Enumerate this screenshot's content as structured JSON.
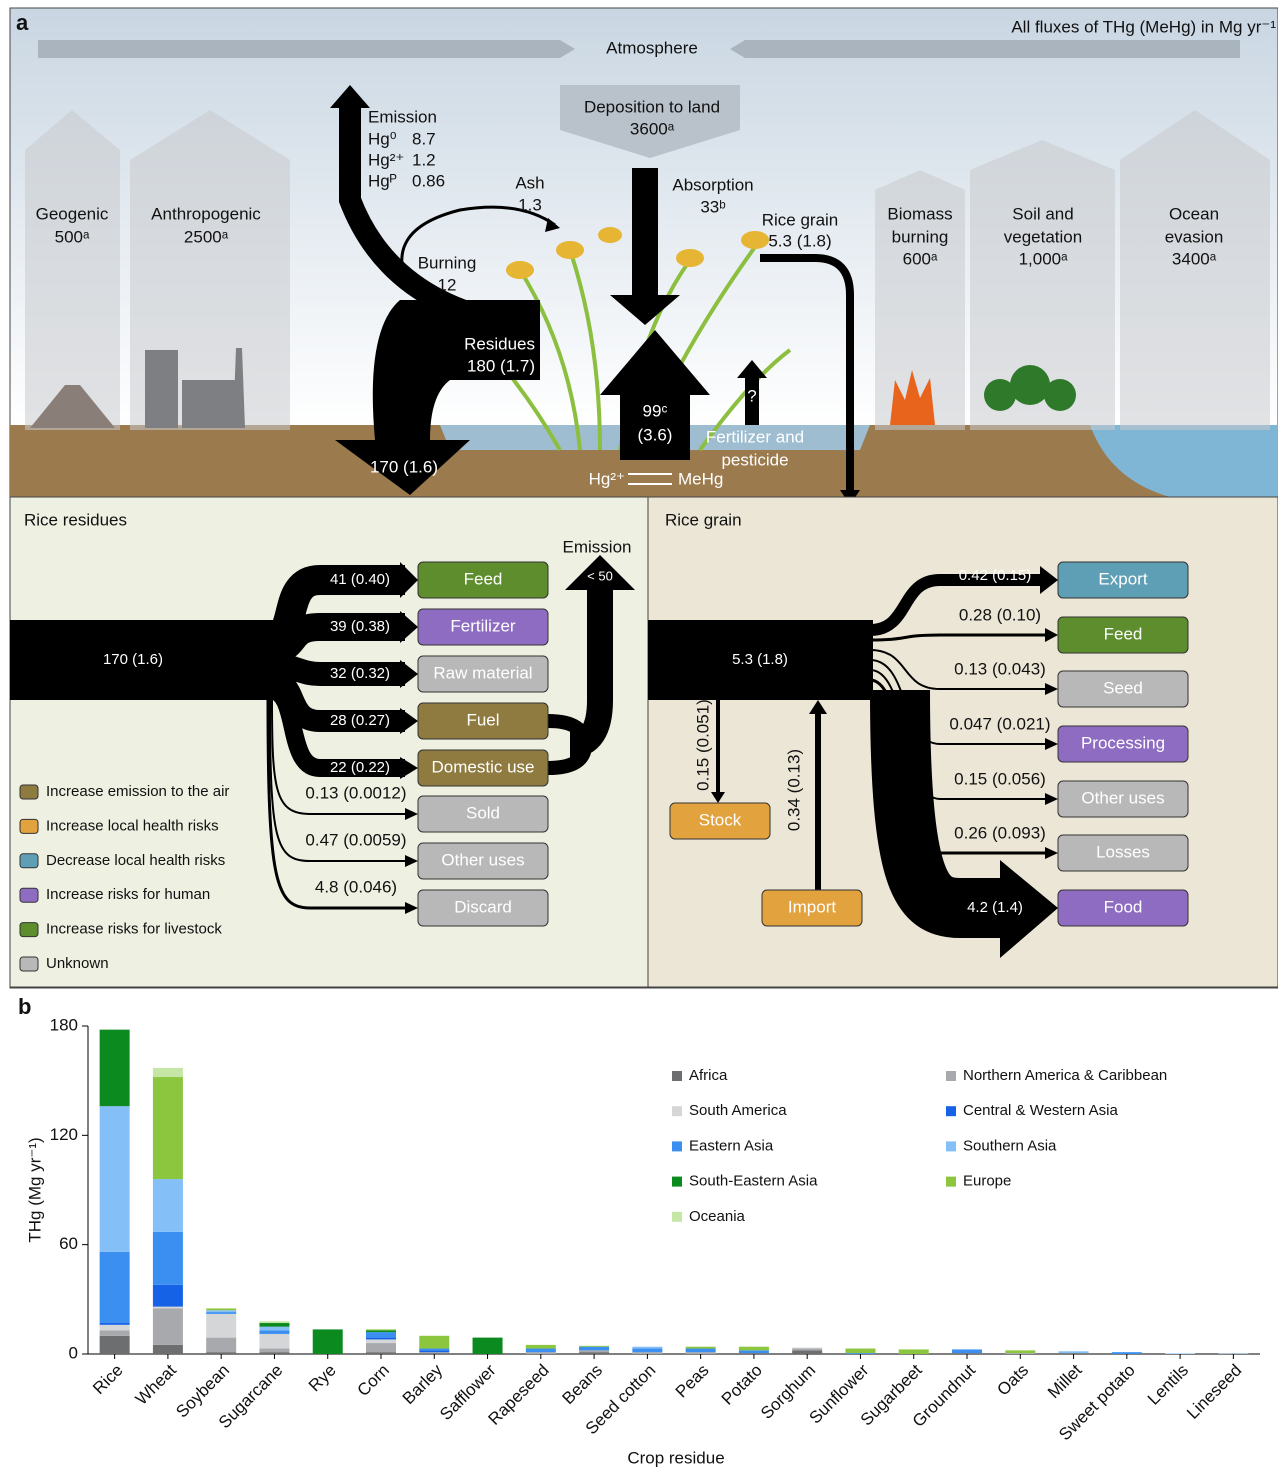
{
  "panel_a": {
    "label": "a",
    "units": "All fluxes of THg (MeHg) in Mg yr⁻¹",
    "atmosphere": "Atmosphere",
    "deposition": {
      "label": "Deposition to land",
      "value": "3600ᵃ"
    },
    "emission": {
      "label": "Emission",
      "rows": [
        [
          "Hg⁰",
          "8.7"
        ],
        [
          "Hg²⁺",
          "1.2"
        ],
        [
          "Hgᴾ",
          "0.86"
        ]
      ]
    },
    "ash": {
      "label": "Ash",
      "value": "1.3"
    },
    "absorption": {
      "label": "Absorption",
      "value": "33ᵇ"
    },
    "rice_grain": {
      "label": "Rice grain",
      "value": "5.3 (1.8)"
    },
    "burning": {
      "label": "Burning",
      "value": "12"
    },
    "residues": {
      "label": "Residues",
      "value": "180 (1.7)"
    },
    "uptake": {
      "value": "99ᶜ",
      "sub": "(3.6)"
    },
    "fertilizer": {
      "mark": "?",
      "lines": [
        "Fertilizer and",
        "pesticide"
      ]
    },
    "residue_flow": "170 (1.6)",
    "speciation": [
      "Hg²⁺",
      "MeHg"
    ],
    "sources": [
      {
        "lines": [
          "Geogenic"
        ],
        "value": "500ᵃ"
      },
      {
        "lines": [
          "Anthropogenic"
        ],
        "value": "2500ᵃ"
      },
      {
        "lines": [
          "Biomass",
          "burning"
        ],
        "value": "600ᵃ"
      },
      {
        "lines": [
          "Soil and",
          "vegetation"
        ],
        "value": "1,000ᵃ"
      },
      {
        "lines": [
          "Ocean",
          "evasion"
        ],
        "value": "3400ᵃ"
      }
    ],
    "residues_panel": {
      "title": "Rice residues",
      "input": "170 (1.6)",
      "emission": {
        "label": "Emission",
        "value": "< 50"
      },
      "flows": [
        {
          "value": "41 (0.40)",
          "dest": "Feed"
        },
        {
          "value": "39 (0.38)",
          "dest": "Fertilizer"
        },
        {
          "value": "32 (0.32)",
          "dest": "Raw material"
        },
        {
          "value": "28 (0.27)",
          "dest": "Fuel"
        },
        {
          "value": "22 (0.22)",
          "dest": "Domestic use"
        },
        {
          "value": "0.13 (0.0012)",
          "dest": "Sold"
        },
        {
          "value": "0.47 (0.0059)",
          "dest": "Other uses"
        },
        {
          "value": "4.8 (0.046)",
          "dest": "Discard"
        }
      ]
    },
    "grain_panel": {
      "title": "Rice grain",
      "input": "5.3 (1.8)",
      "stock": {
        "value": "0.15 (0.051)",
        "dest": "Stock"
      },
      "import": {
        "value": "0.34 (0.13)",
        "source": "Import"
      },
      "flows": [
        {
          "value": "0.42 (0.15)",
          "dest": "Export"
        },
        {
          "value": "0.28 (0.10)",
          "dest": "Feed"
        },
        {
          "value": "0.13 (0.043)",
          "dest": "Seed"
        },
        {
          "value": "0.047 (0.021)",
          "dest": "Processing"
        },
        {
          "value": "0.15 (0.056)",
          "dest": "Other uses"
        },
        {
          "value": "0.26 (0.093)",
          "dest": "Losses"
        },
        {
          "value": "4.2 (1.4)",
          "dest": "Food"
        }
      ]
    },
    "legend": [
      {
        "label": "Increase emission to the air",
        "color": "#8f7b40"
      },
      {
        "label": "Increase local health risks",
        "color": "#e2a23e"
      },
      {
        "label": "Decrease local health risks",
        "color": "#5f9fb6"
      },
      {
        "label": "Increase risks for human",
        "color": "#8d6cc2"
      },
      {
        "label": "Increase risks for livestock",
        "color": "#5d8d2c"
      },
      {
        "label": "Unknown",
        "color": "#b8b8b8"
      }
    ]
  },
  "chart_data": {
    "type": "stacked_bar",
    "label": "b",
    "y_label": "THg (Mg yr⁻¹)",
    "x_label": "Crop residue",
    "categories": [
      "Rice",
      "Wheat",
      "Soybean",
      "Sugarcane",
      "Rye",
      "Corn",
      "Barley",
      "Safflower",
      "Rapeseed",
      "Beans",
      "Seed cotton",
      "Peas",
      "Potato",
      "Sorghum",
      "Sunflower",
      "Sugarbeet",
      "Groundnut",
      "Oats",
      "Millet",
      "Sweet potato",
      "Lentils",
      "Lineseed"
    ],
    "ylim": [
      0,
      180
    ],
    "yticks": [
      0,
      60,
      120,
      180
    ],
    "series": [
      {
        "name": "Africa",
        "color": "#6d6e70",
        "values": [
          10,
          5,
          1,
          1,
          0,
          1,
          0.5,
          0,
          0,
          1,
          0,
          0,
          0.5,
          2,
          0,
          0,
          0.5,
          0,
          0.5,
          0,
          0,
          0
        ]
      },
      {
        "name": "Northern America & Caribbean",
        "color": "#a7a9ac",
        "values": [
          3,
          20,
          8,
          2,
          0,
          5,
          0.5,
          0,
          1,
          1,
          1,
          1,
          0,
          1,
          0,
          0,
          0,
          0.5,
          0,
          0,
          0,
          0
        ]
      },
      {
        "name": "South America",
        "color": "#d4d6d8",
        "values": [
          3,
          1,
          13,
          8,
          0,
          2,
          0,
          0,
          0,
          0,
          0,
          0,
          0,
          0.5,
          0,
          0,
          0,
          0,
          0,
          0,
          0,
          0
        ]
      },
      {
        "name": "Central & Western Asia",
        "color": "#1662e6",
        "values": [
          1,
          12,
          0,
          0,
          0,
          1,
          1,
          0,
          0,
          0,
          0,
          0,
          0,
          0,
          0,
          0,
          0,
          0,
          0,
          0,
          0,
          0
        ]
      },
      {
        "name": "Eastern Asia",
        "color": "#3a8ff0",
        "values": [
          39,
          29,
          1,
          2,
          0,
          3,
          1,
          0,
          2,
          2,
          2,
          2,
          1.5,
          0,
          0.5,
          0,
          2,
          0,
          0,
          1,
          0,
          0
        ]
      },
      {
        "name": "Southern Asia",
        "color": "#84bff8",
        "values": [
          80,
          29,
          1,
          2,
          0,
          0,
          0,
          0,
          0,
          0,
          1,
          0,
          0,
          0,
          0,
          0,
          0,
          0,
          1,
          0,
          0.3,
          0.2
        ]
      },
      {
        "name": "South-Eastern Asia",
        "color": "#0b8a1f",
        "values": [
          42,
          0,
          0,
          2,
          13.5,
          1,
          0,
          9,
          0,
          0,
          0,
          0,
          0,
          0,
          0,
          0,
          0,
          0,
          0,
          0,
          0,
          0
        ]
      },
      {
        "name": "Europe",
        "color": "#8cc63f",
        "values": [
          0,
          56,
          1,
          0,
          0,
          0.5,
          7,
          0,
          2,
          0.5,
          0,
          1,
          2,
          0,
          2.5,
          2.5,
          0,
          1.5,
          0,
          0,
          0,
          0
        ]
      },
      {
        "name": "Oceania",
        "color": "#c6e6a6",
        "values": [
          0,
          5,
          0,
          1,
          0,
          0,
          0,
          0,
          0,
          0,
          0,
          0,
          0,
          0,
          0,
          0,
          0,
          0,
          0,
          0,
          0,
          0
        ]
      }
    ]
  }
}
